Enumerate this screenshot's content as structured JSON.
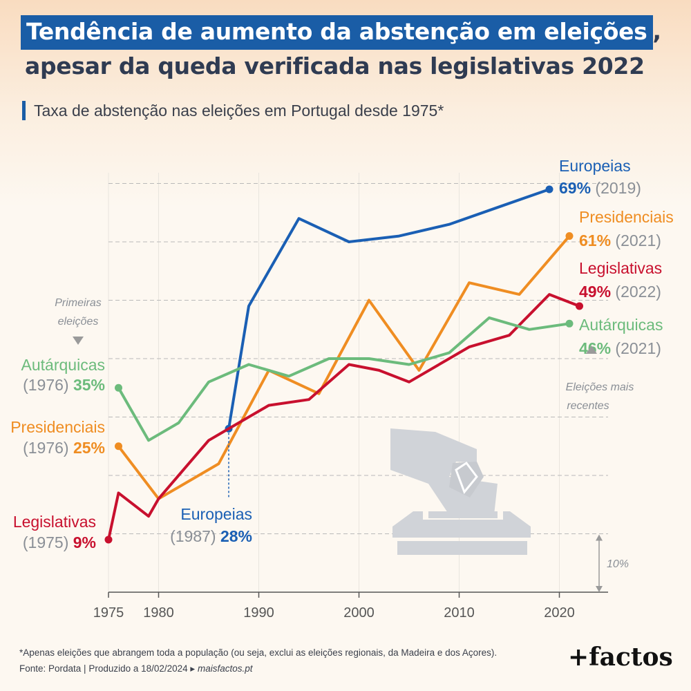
{
  "title": {
    "line1": "Tendência de aumento da abstenção em eleições",
    "line1_punct": ",",
    "line2": "apesar da queda verificada nas legislativas 2022"
  },
  "subtitle": "Taxa de abstenção nas eleições em Portugal desde 1975*",
  "chart_data": {
    "type": "line",
    "x_ticks": [
      1975,
      1980,
      1990,
      2000,
      2010,
      2020
    ],
    "xlim": [
      1975,
      2025
    ],
    "ylim": [
      0,
      70
    ],
    "y_grid": [
      10,
      20,
      30,
      40,
      50,
      60,
      70
    ],
    "grid": true,
    "series": [
      {
        "name": "Europeias",
        "color": "#1a5fb4",
        "points": [
          [
            1987,
            28
          ],
          [
            1989,
            49
          ],
          [
            1994,
            64
          ],
          [
            1999,
            60
          ],
          [
            2004,
            61
          ],
          [
            2009,
            63
          ],
          [
            2014,
            66
          ],
          [
            2019,
            69
          ]
        ],
        "start_label": {
          "name": "Europeias",
          "year": "(1987)",
          "value": "28%"
        },
        "end_label": {
          "name": "Europeias",
          "value": "69%",
          "year": "(2019)"
        }
      },
      {
        "name": "Presidenciais",
        "color": "#ef8d22",
        "points": [
          [
            1976,
            25
          ],
          [
            1980,
            16
          ],
          [
            1986,
            22
          ],
          [
            1991,
            38
          ],
          [
            1996,
            34
          ],
          [
            2001,
            50
          ],
          [
            2006,
            38
          ],
          [
            2011,
            53
          ],
          [
            2016,
            51
          ],
          [
            2021,
            61
          ]
        ],
        "start_label": {
          "name": "Presidenciais",
          "year": "(1976)",
          "value": "25%"
        },
        "end_label": {
          "name": "Presidenciais",
          "value": "61%",
          "year": "(2021)"
        }
      },
      {
        "name": "Legislativas",
        "color": "#c8102e",
        "points": [
          [
            1975,
            9
          ],
          [
            1976,
            17
          ],
          [
            1979,
            13
          ],
          [
            1980,
            16
          ],
          [
            1983,
            22
          ],
          [
            1985,
            26
          ],
          [
            1987,
            28
          ],
          [
            1991,
            32
          ],
          [
            1995,
            33
          ],
          [
            1999,
            39
          ],
          [
            2002,
            38
          ],
          [
            2005,
            36
          ],
          [
            2009,
            40
          ],
          [
            2011,
            42
          ],
          [
            2015,
            44
          ],
          [
            2019,
            51
          ],
          [
            2022,
            49
          ]
        ],
        "start_label": {
          "name": "Legislativas",
          "year": "(1975)",
          "value": "9%"
        },
        "end_label": {
          "name": "Legislativas",
          "value": "49%",
          "year": "(2022)"
        }
      },
      {
        "name": "Autárquicas",
        "color": "#6cbb7c",
        "points": [
          [
            1976,
            35
          ],
          [
            1979,
            26
          ],
          [
            1982,
            29
          ],
          [
            1985,
            36
          ],
          [
            1989,
            39
          ],
          [
            1993,
            37
          ],
          [
            1997,
            40
          ],
          [
            2001,
            40
          ],
          [
            2005,
            39
          ],
          [
            2009,
            41
          ],
          [
            2013,
            47
          ],
          [
            2017,
            45
          ],
          [
            2021,
            46
          ]
        ],
        "start_label": {
          "name": "Autárquicas",
          "year": "(1976)",
          "value": "35%"
        },
        "end_label": {
          "name": "Autárquicas",
          "value": "46%",
          "year": "(2021)"
        }
      }
    ],
    "annotations": {
      "first": "Primeiras eleições",
      "latest": "Eleições mais recentes",
      "scale": "10%"
    }
  },
  "footnote": "*Apenas eleições que abrangem toda a população (ou seja, exclui as eleições regionais, da Madeira e dos Açores).",
  "source": {
    "text": "Fonte: Pordata | Produzido a 18/02/2024 ▸",
    "site": "maisfactos.pt"
  },
  "brand": "+factos",
  "colors": {
    "accent": "#1a5da6",
    "label_gray": "#8a8f96",
    "axis_gray": "#9a9a9a"
  }
}
